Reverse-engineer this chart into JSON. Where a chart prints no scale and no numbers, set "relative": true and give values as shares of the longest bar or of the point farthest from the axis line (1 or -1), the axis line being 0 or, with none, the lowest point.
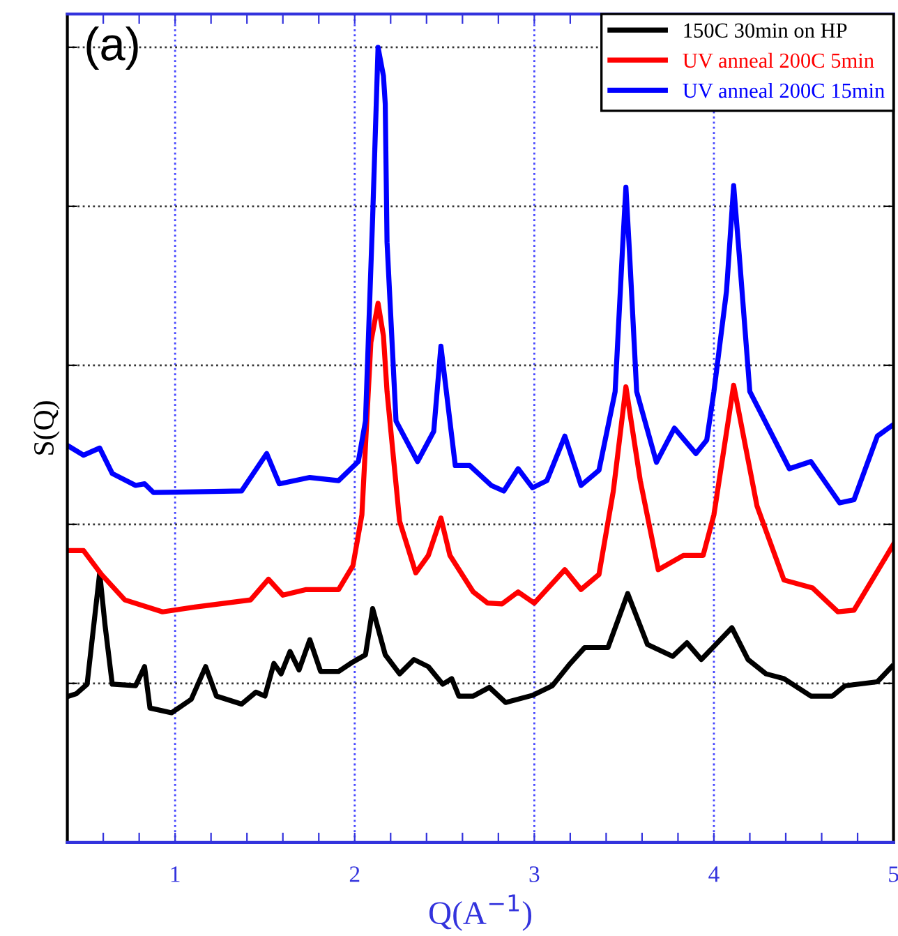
{
  "chart_data": {
    "type": "line",
    "title": "(a)",
    "xlabel": "Q(A$^{−1}$)",
    "ylabel": "S(Q)",
    "relative": true,
    "xlim": [
      0.4,
      5
    ],
    "xticks": [
      {
        "value": 0.6,
        "label": null
      },
      {
        "value": 0.8,
        "label": null
      },
      1,
      {
        "value": 1.2,
        "label": null
      },
      {
        "value": 1.4,
        "label": null
      },
      {
        "value": 1.6,
        "label": null
      },
      {
        "value": 1.8,
        "label": null
      },
      2,
      {
        "value": 2.2,
        "label": null
      },
      {
        "value": 2.4,
        "label": null
      },
      {
        "value": 2.6,
        "label": null
      },
      {
        "value": 2.8,
        "label": null
      },
      3,
      {
        "value": 3.2,
        "label": null
      },
      {
        "value": 3.4,
        "label": null
      },
      {
        "value": 3.6,
        "label": null
      },
      {
        "value": 3.8,
        "label": null
      },
      4,
      {
        "value": 4.2,
        "label": null
      },
      {
        "value": 4.4,
        "label": null
      },
      {
        "value": 4.6,
        "label": null
      },
      {
        "value": 4.8,
        "label": null
      },
      5
    ],
    "grid": true,
    "legend": "top right",
    "line_style": "solid",
    "marker": "none",
    "series": [
      {
        "name": "150C 30min on HP",
        "color": "#000000",
        "x": [
          0.41,
          0.45,
          0.51,
          0.58,
          0.61,
          0.65,
          0.78,
          0.83,
          0.86,
          0.98,
          1.09,
          1.17,
          1.23,
          1.37,
          1.45,
          1.5,
          1.55,
          1.59,
          1.64,
          1.69,
          1.75,
          1.81,
          1.91,
          1.99,
          2.06,
          2.1,
          2.17,
          2.25,
          2.33,
          2.41,
          2.49,
          2.54,
          2.58,
          2.66,
          2.75,
          2.84,
          2.99,
          3.1,
          3.2,
          3.28,
          3.41,
          3.52,
          3.63,
          3.77,
          3.85,
          3.93,
          4.1,
          4.19,
          4.29,
          4.39,
          4.54,
          4.66,
          4.73,
          4.91,
          4.99
        ],
        "values": [
          0.184,
          0.187,
          0.199,
          0.339,
          0.273,
          0.199,
          0.197,
          0.221,
          0.169,
          0.163,
          0.18,
          0.221,
          0.184,
          0.174,
          0.189,
          0.184,
          0.225,
          0.212,
          0.24,
          0.217,
          0.255,
          0.215,
          0.215,
          0.227,
          0.236,
          0.294,
          0.236,
          0.212,
          0.23,
          0.221,
          0.199,
          0.206,
          0.184,
          0.184,
          0.195,
          0.176,
          0.185,
          0.197,
          0.225,
          0.245,
          0.245,
          0.313,
          0.249,
          0.234,
          0.251,
          0.23,
          0.27,
          0.23,
          0.212,
          0.206,
          0.184,
          0.184,
          0.197,
          0.202,
          0.221
        ]
      },
      {
        "name": "UV anneal 200C 5min",
        "color": "#ff0000",
        "x": [
          0.41,
          0.49,
          0.59,
          0.72,
          0.93,
          1.11,
          1.42,
          1.52,
          1.6,
          1.73,
          1.91,
          1.99,
          2.04,
          2.09,
          2.13,
          2.16,
          2.18,
          2.25,
          2.34,
          2.41,
          2.48,
          2.53,
          2.66,
          2.74,
          2.82,
          2.91,
          3.0,
          3.17,
          3.26,
          3.36,
          3.44,
          3.51,
          3.59,
          3.69,
          3.83,
          3.94,
          4.0,
          4.11,
          4.24,
          4.39,
          4.55,
          4.69,
          4.78,
          5.0
        ],
        "values": [
          0.367,
          0.367,
          0.337,
          0.305,
          0.29,
          0.296,
          0.305,
          0.331,
          0.311,
          0.318,
          0.318,
          0.348,
          0.412,
          0.629,
          0.678,
          0.637,
          0.567,
          0.404,
          0.339,
          0.361,
          0.408,
          0.361,
          0.315,
          0.301,
          0.3,
          0.315,
          0.301,
          0.343,
          0.318,
          0.337,
          0.442,
          0.573,
          0.455,
          0.343,
          0.361,
          0.361,
          0.412,
          0.575,
          0.423,
          0.33,
          0.32,
          0.29,
          0.292,
          0.375
        ]
      },
      {
        "name": "UV anneal 200C 15min",
        "color": "#0000ff",
        "x": [
          0.41,
          0.49,
          0.58,
          0.65,
          0.78,
          0.83,
          0.88,
          1.37,
          1.51,
          1.58,
          1.75,
          1.91,
          2.02,
          2.06,
          2.1,
          2.13,
          2.16,
          2.17,
          2.18,
          2.23,
          2.35,
          2.44,
          2.48,
          2.53,
          2.56,
          2.64,
          2.76,
          2.83,
          2.91,
          2.99,
          3.07,
          3.17,
          3.26,
          3.36,
          3.45,
          3.49,
          3.51,
          3.53,
          3.57,
          3.68,
          3.78,
          3.9,
          3.96,
          4.0,
          4.07,
          4.11,
          4.14,
          4.2,
          4.42,
          4.54,
          4.7,
          4.78,
          4.91,
          4.99
        ],
        "values": [
          0.498,
          0.487,
          0.496,
          0.464,
          0.449,
          0.451,
          0.44,
          0.442,
          0.489,
          0.451,
          0.459,
          0.455,
          0.479,
          0.53,
          0.787,
          1,
          0.964,
          0.929,
          0.755,
          0.53,
          0.479,
          0.517,
          0.624,
          0.53,
          0.474,
          0.474,
          0.449,
          0.442,
          0.47,
          0.446,
          0.455,
          0.511,
          0.449,
          0.468,
          0.567,
          0.742,
          0.824,
          0.742,
          0.567,
          0.478,
          0.521,
          0.489,
          0.506,
          0.567,
          0.693,
          0.826,
          0.742,
          0.567,
          0.47,
          0.479,
          0.427,
          0.431,
          0.511,
          0.524
        ]
      }
    ]
  }
}
